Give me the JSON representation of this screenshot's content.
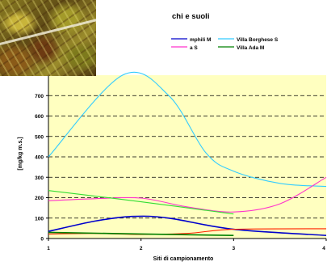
{
  "chart_data": {
    "type": "line",
    "title": "chi e suoli",
    "xlabel": "Siti di campionamento",
    "ylabel": "[mg/kg m.s.]",
    "xlim": [
      1,
      4
    ],
    "ylim": [
      0,
      800
    ],
    "x_ticks": [
      "1",
      "2",
      "3",
      "4"
    ],
    "y_ticks": [
      "0",
      "100",
      "200",
      "300",
      "400",
      "500",
      "600",
      "700"
    ],
    "legend": [
      {
        "label": "mphili M",
        "color": "#0000cc"
      },
      {
        "label": "Villa Borghese S",
        "color": "#33ccff"
      },
      {
        "label": "a S",
        "color": "#ff33cc"
      },
      {
        "label": "Villa Ada M",
        "color": "#008000"
      }
    ],
    "series": [
      {
        "color": "#33ccff",
        "points": [
          [
            1,
            400
          ],
          [
            1.8,
            800
          ],
          [
            2.3,
            700
          ],
          [
            2.7,
            420
          ],
          [
            3,
            330
          ],
          [
            3.5,
            270
          ],
          [
            4,
            255
          ]
        ]
      },
      {
        "color": "#ff33cc",
        "points": [
          [
            1,
            185
          ],
          [
            1.5,
            195
          ],
          [
            2,
            198
          ],
          [
            2.5,
            155
          ],
          [
            3,
            130
          ],
          [
            3.5,
            170
          ],
          [
            4,
            300
          ]
        ]
      },
      {
        "color": "#33dd33",
        "points": [
          [
            1,
            235
          ],
          [
            2,
            180
          ],
          [
            3,
            120
          ]
        ]
      },
      {
        "color": "#0000cc",
        "points": [
          [
            1,
            35
          ],
          [
            1.5,
            85
          ],
          [
            1.9,
            108
          ],
          [
            2.3,
            100
          ],
          [
            3,
            45
          ],
          [
            4,
            15
          ]
        ]
      },
      {
        "color": "#ff2200",
        "points": [
          [
            1,
            22
          ],
          [
            1.5,
            25
          ],
          [
            2,
            20
          ],
          [
            2.5,
            25
          ],
          [
            3,
            45
          ],
          [
            4,
            48
          ]
        ]
      },
      {
        "color": "#008000",
        "points": [
          [
            1,
            30
          ],
          [
            2,
            22
          ],
          [
            3,
            15
          ]
        ]
      }
    ]
  }
}
